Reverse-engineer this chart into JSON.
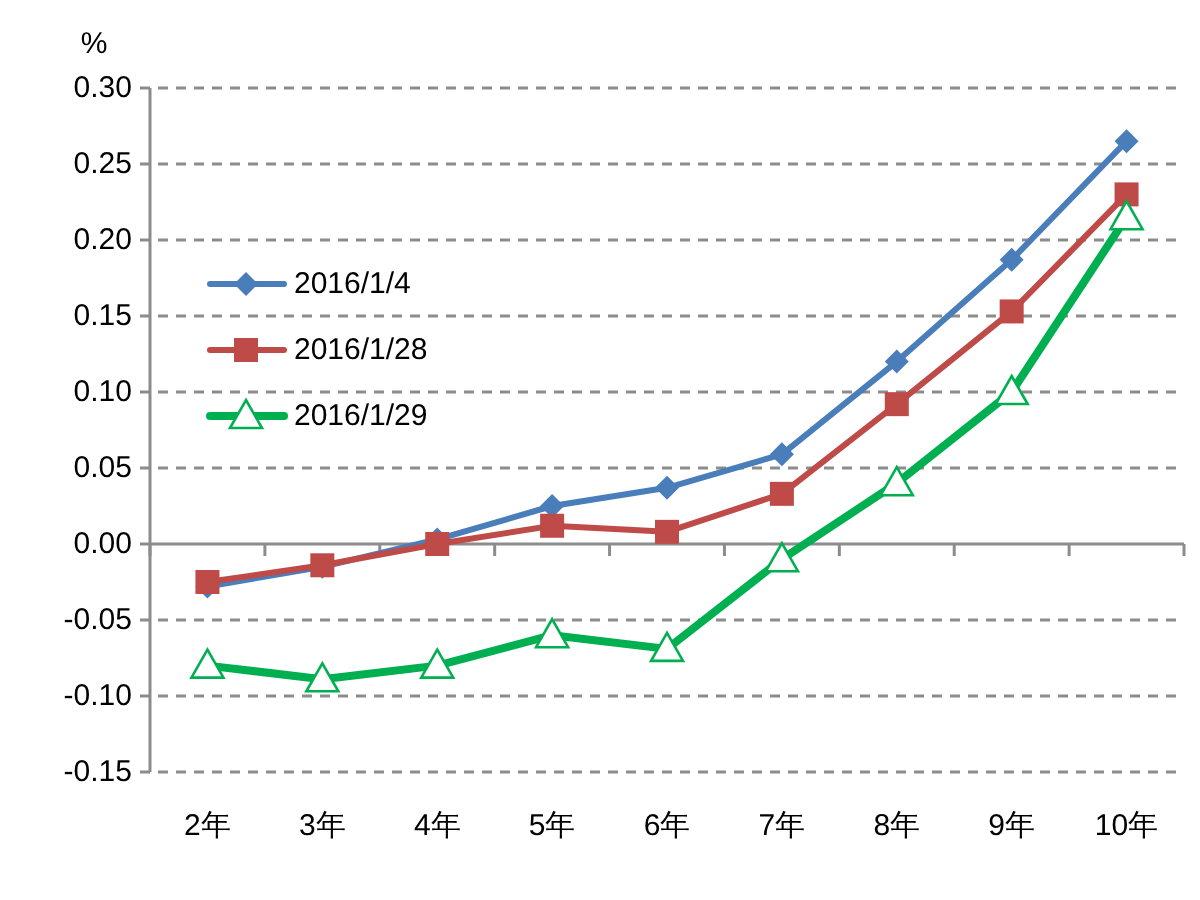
{
  "chart_data": {
    "type": "line",
    "ylabel": "%",
    "categories": [
      "2年",
      "3年",
      "4年",
      "5年",
      "6年",
      "7年",
      "8年",
      "9年",
      "10年"
    ],
    "series": [
      {
        "name": "2016/1/4",
        "color": "#4a7ebb",
        "marker": "diamond",
        "values": [
          -0.028,
          -0.015,
          0.003,
          0.025,
          0.037,
          0.059,
          0.12,
          0.187,
          0.265
        ]
      },
      {
        "name": "2016/1/28",
        "color": "#be4b48",
        "marker": "square",
        "values": [
          -0.025,
          -0.014,
          0.0,
          0.012,
          0.008,
          0.033,
          0.092,
          0.153,
          0.23
        ]
      },
      {
        "name": "2016/1/29",
        "color": "#00b050",
        "marker": "triangle",
        "values": [
          -0.08,
          -0.089,
          -0.08,
          -0.06,
          -0.069,
          -0.01,
          0.04,
          0.1,
          0.215
        ]
      }
    ],
    "ylim": [
      -0.15,
      0.3
    ],
    "yticks": [
      {
        "value": -0.15,
        "label": "-0.15"
      },
      {
        "value": -0.1,
        "label": "-0.10"
      },
      {
        "value": -0.05,
        "label": "-0.05"
      },
      {
        "value": 0,
        "label": "0.00"
      },
      {
        "value": 0.05,
        "label": "0.05"
      },
      {
        "value": 0.1,
        "label": "0.10"
      },
      {
        "value": 0.15,
        "label": "0.15"
      },
      {
        "value": 0.2,
        "label": "0.20"
      },
      {
        "value": 0.25,
        "label": "0.25"
      },
      {
        "value": 0.3,
        "label": "0.30"
      }
    ],
    "grid": "y",
    "legend": "top left",
    "line_style": "solid"
  }
}
